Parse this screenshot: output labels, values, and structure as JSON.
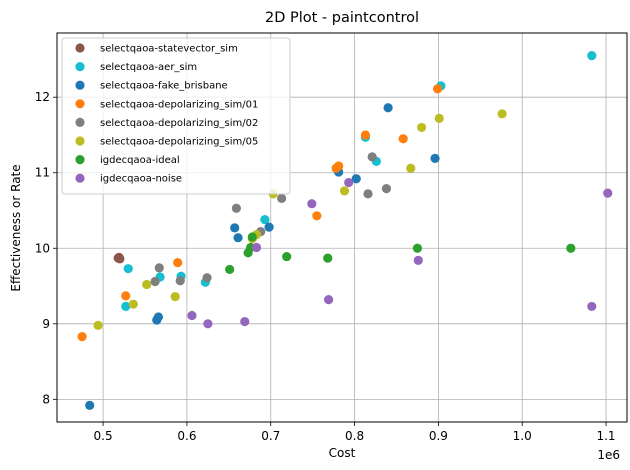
{
  "chart_data": {
    "type": "scatter",
    "title": "2D Plot - paintcontrol",
    "xlabel": "Cost",
    "ylabel": "Effectiveness or Rate",
    "x_multiplier_label": "1e6",
    "xlim": [
      0.445,
      1.125
    ],
    "ylim": [
      7.7,
      12.85
    ],
    "x_ticks": [
      0.5,
      0.6,
      0.7,
      0.8,
      0.9,
      1.0,
      1.1
    ],
    "y_ticks": [
      8,
      9,
      10,
      11,
      12
    ],
    "grid": true,
    "legend_position": "top-left",
    "series": [
      {
        "name": "selectqaoa-statevector_sim",
        "color": "#8c564b",
        "points": [
          [
            0.518,
            9.87
          ],
          [
            0.519,
            9.88
          ],
          [
            0.52,
            9.86
          ]
        ]
      },
      {
        "name": "selectqaoa-aer_sim",
        "color": "#17becf",
        "points": [
          [
            0.527,
            9.23
          ],
          [
            0.53,
            9.73
          ],
          [
            0.568,
            9.62
          ],
          [
            0.593,
            9.63
          ],
          [
            0.622,
            9.55
          ],
          [
            0.693,
            10.38
          ],
          [
            0.78,
            11.03
          ],
          [
            0.813,
            11.47
          ],
          [
            0.826,
            11.15
          ],
          [
            0.903,
            12.15
          ],
          [
            1.083,
            12.55
          ]
        ]
      },
      {
        "name": "selectqaoa-fake_brisbane",
        "color": "#1f77b4",
        "points": [
          [
            0.484,
            7.92
          ],
          [
            0.564,
            9.05
          ],
          [
            0.566,
            9.09
          ],
          [
            0.657,
            10.27
          ],
          [
            0.661,
            10.14
          ],
          [
            0.698,
            10.28
          ],
          [
            0.781,
            11.01
          ],
          [
            0.802,
            10.92
          ],
          [
            0.84,
            11.86
          ],
          [
            0.896,
            11.19
          ]
        ]
      },
      {
        "name": "selectqaoa-depolarizing_sim/01",
        "color": "#ff7f0e",
        "points": [
          [
            0.475,
            8.83
          ],
          [
            0.527,
            9.37
          ],
          [
            0.589,
            9.81
          ],
          [
            0.755,
            10.43
          ],
          [
            0.778,
            11.06
          ],
          [
            0.781,
            11.09
          ],
          [
            0.813,
            11.5
          ],
          [
            0.858,
            11.45
          ],
          [
            0.899,
            12.11
          ]
        ]
      },
      {
        "name": "selectqaoa-depolarizing_sim/02",
        "color": "#7f7f7f",
        "points": [
          [
            0.562,
            9.56
          ],
          [
            0.567,
            9.74
          ],
          [
            0.592,
            9.57
          ],
          [
            0.624,
            9.61
          ],
          [
            0.659,
            10.53
          ],
          [
            0.713,
            10.66
          ],
          [
            0.688,
            10.22
          ],
          [
            0.816,
            10.72
          ],
          [
            0.821,
            11.21
          ],
          [
            0.838,
            10.79
          ]
        ]
      },
      {
        "name": "selectqaoa-depolarizing_sim/05",
        "color": "#bcbd22",
        "points": [
          [
            0.494,
            8.98
          ],
          [
            0.536,
            9.26
          ],
          [
            0.552,
            9.52
          ],
          [
            0.586,
            9.36
          ],
          [
            0.678,
            10.13
          ],
          [
            0.683,
            10.18
          ],
          [
            0.703,
            10.72
          ],
          [
            0.788,
            10.76
          ],
          [
            0.867,
            11.06
          ],
          [
            0.88,
            11.6
          ],
          [
            0.901,
            11.72
          ],
          [
            0.976,
            11.78
          ]
        ]
      },
      {
        "name": "igdecqaoa-ideal",
        "color": "#2ca02c",
        "points": [
          [
            0.651,
            9.72
          ],
          [
            0.673,
            9.94
          ],
          [
            0.676,
            10.01
          ],
          [
            0.678,
            10.15
          ],
          [
            0.719,
            9.89
          ],
          [
            0.768,
            9.87
          ],
          [
            0.875,
            10.0
          ],
          [
            1.058,
            10.0
          ]
        ]
      },
      {
        "name": "igdecqaoa-noise",
        "color": "#9467bd",
        "points": [
          [
            0.606,
            9.11
          ],
          [
            0.625,
            9.0
          ],
          [
            0.669,
            9.03
          ],
          [
            0.683,
            10.01
          ],
          [
            0.749,
            10.59
          ],
          [
            0.769,
            9.32
          ],
          [
            0.793,
            10.87
          ],
          [
            0.876,
            9.84
          ],
          [
            1.083,
            9.23
          ],
          [
            1.102,
            10.73
          ]
        ]
      }
    ]
  }
}
